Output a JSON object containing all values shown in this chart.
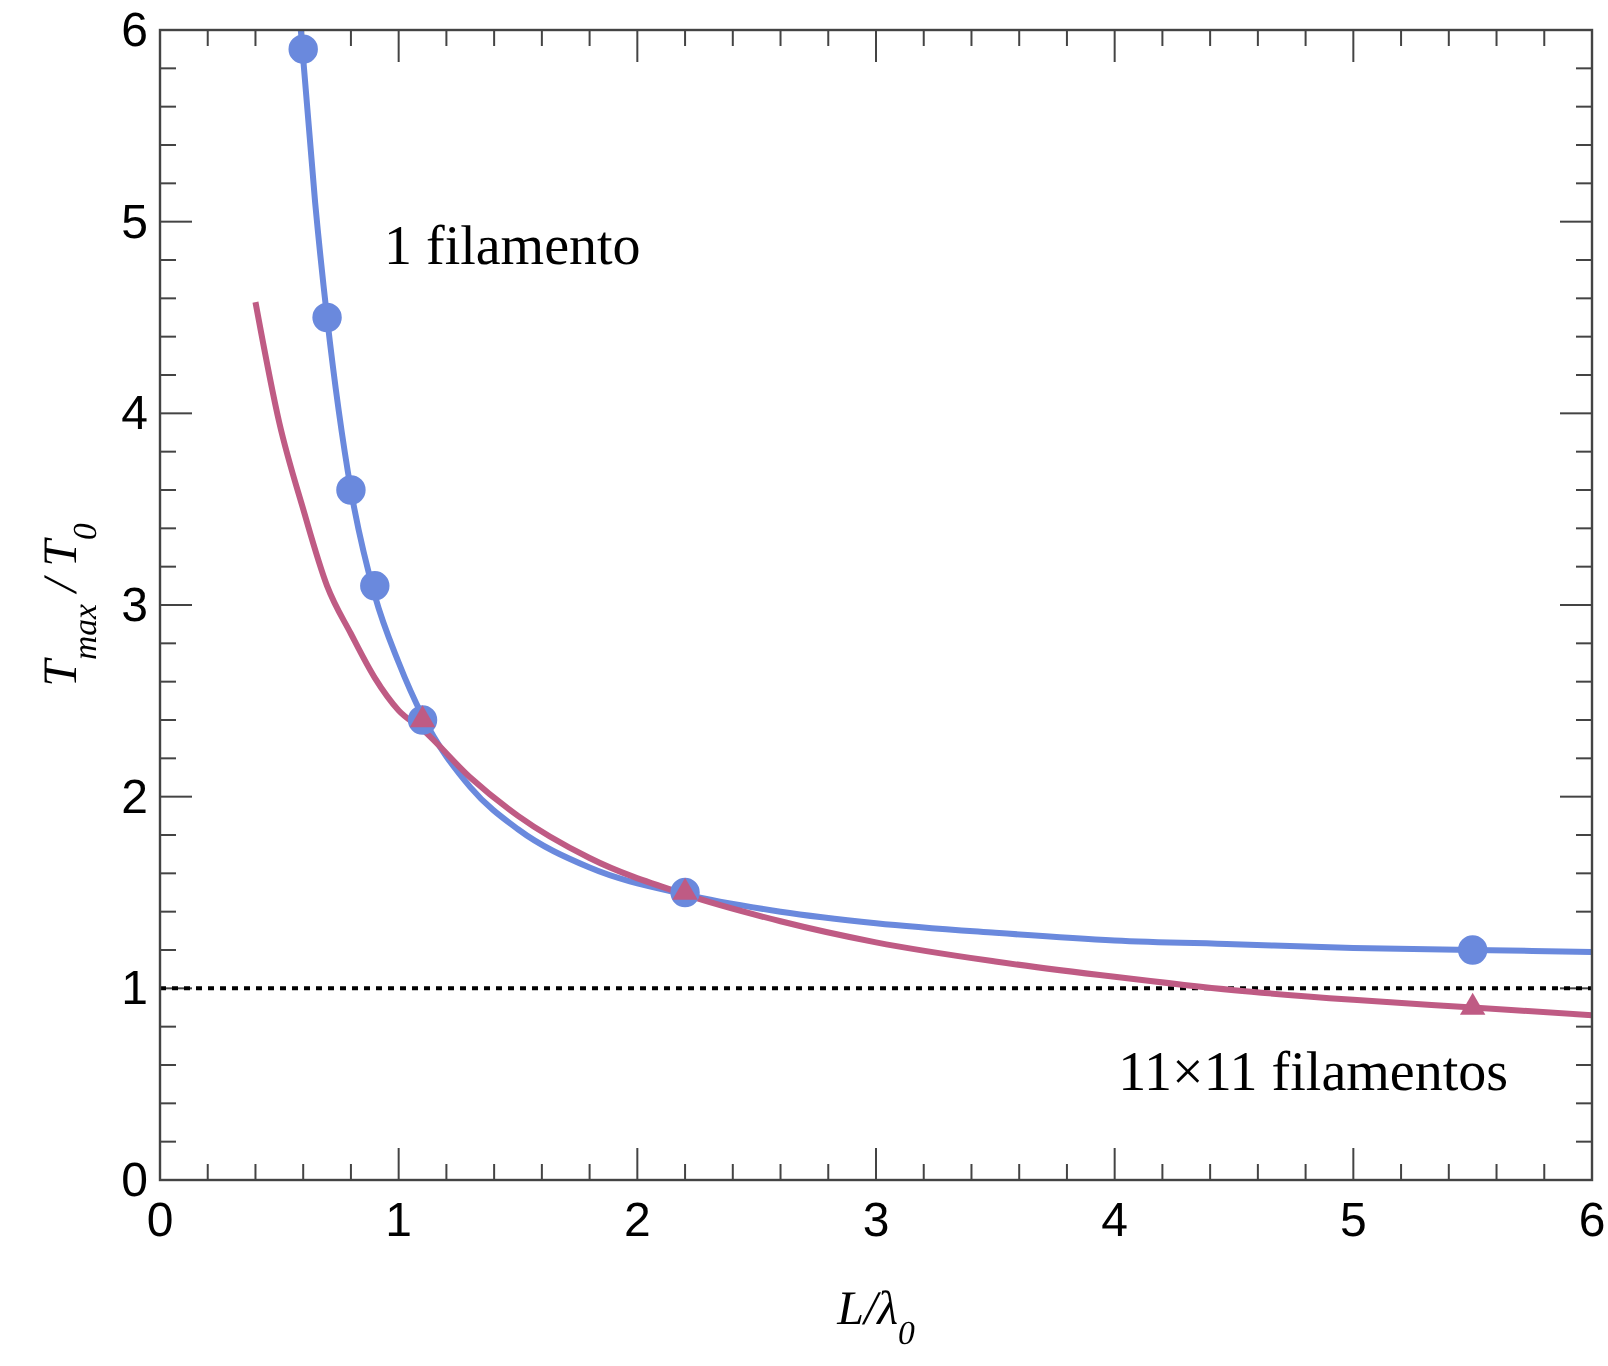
{
  "chart_data": {
    "type": "line",
    "xlabel": "L/λ$_{0}$",
    "ylabel": "T$_{max}$ / T$_{0}$",
    "xlim": [
      0,
      6
    ],
    "ylim": [
      0,
      6
    ],
    "xticks": [
      0,
      1,
      2,
      3,
      4,
      5,
      6
    ],
    "yticks": [
      0,
      1,
      2,
      3,
      4,
      5,
      6
    ],
    "grid": false,
    "annotations": [
      "1 filamento",
      "11×11 filamentos"
    ],
    "ref_lines": [
      {
        "axis": "y",
        "value": 1,
        "color": "#000000",
        "line_style": "dotted"
      }
    ],
    "series": [
      {
        "color": "#6a89dd",
        "marker": "none",
        "x": [
          0.59,
          0.65,
          0.7,
          0.8,
          0.9,
          1.0,
          1.1,
          1.3,
          1.5,
          1.8,
          2.2,
          2.6,
          3,
          3.5,
          4,
          4.5,
          5,
          5.5,
          6
        ],
        "values": [
          6,
          5.1,
          4.5,
          3.6,
          3.05,
          2.7,
          2.42,
          2.05,
          1.83,
          1.63,
          1.49,
          1.4,
          1.34,
          1.29,
          1.25,
          1.23,
          1.21,
          1.2,
          1.19
        ]
      },
      {
        "color": "#bf5b84",
        "marker": "none",
        "x": [
          0.4,
          0.5,
          0.6,
          0.7,
          0.8,
          0.9,
          1.0,
          1.1,
          1.3,
          1.5,
          1.8,
          2.2,
          2.6,
          3,
          3.5,
          4,
          4.5,
          5,
          5.5,
          6
        ],
        "values": [
          4.58,
          3.95,
          3.5,
          3.1,
          2.85,
          2.62,
          2.45,
          2.35,
          2.1,
          1.9,
          1.68,
          1.49,
          1.35,
          1.24,
          1.14,
          1.06,
          0.99,
          0.94,
          0.9,
          0.86
        ]
      },
      {
        "type": "scatter",
        "color": "#6a89dd",
        "marker": "circle",
        "x": [
          0.6,
          0.7,
          0.8,
          0.9,
          1.1,
          2.2,
          5.5
        ],
        "values": [
          5.9,
          4.5,
          3.6,
          3.1,
          2.4,
          1.5,
          1.2
        ]
      },
      {
        "type": "scatter",
        "color": "#bf5b84",
        "marker": "triangle",
        "x": [
          1.1,
          2.2,
          5.5
        ],
        "values": [
          2.4,
          1.5,
          0.9
        ]
      }
    ]
  }
}
